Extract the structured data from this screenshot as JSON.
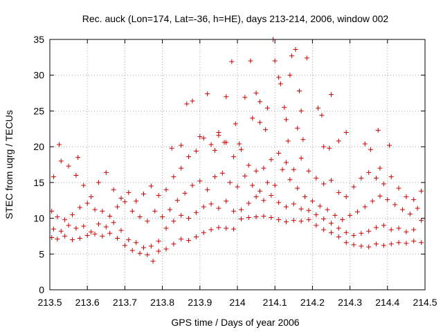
{
  "chart_data": {
    "type": "scatter",
    "title": "Rec. auck (Lon=174, Lat=-36, h=HE), days 213-214, 2006, window 002",
    "xlabel": "GPS time / Days of year 2006",
    "ylabel": "STEC from uqrg / TECUs",
    "xlim": [
      213.5,
      214.5
    ],
    "ylim": [
      0,
      35
    ],
    "x_ticks": [
      213.5,
      213.6,
      213.7,
      213.8,
      213.9,
      214.0,
      214.1,
      214.2,
      214.3,
      214.4,
      214.5
    ],
    "x_tick_labels": [
      "213.5",
      "213.6",
      "213.7",
      "213.8",
      "213.9",
      "214",
      "214.1",
      "214.2",
      "214.3",
      "214.4",
      "214.5"
    ],
    "y_ticks": [
      0,
      5,
      10,
      15,
      20,
      25,
      30,
      35
    ],
    "y_tick_labels": [
      "0",
      "5",
      "10",
      "15",
      "20",
      "25",
      "30",
      "35"
    ],
    "grid": true,
    "marker": "plus",
    "color": "#cc0000",
    "series": [
      {
        "values": [
          [
            213.505,
            7.3
          ],
          [
            213.52,
            7.1
          ],
          [
            213.54,
            7.5
          ],
          [
            213.56,
            7.0
          ],
          [
            213.58,
            7.2
          ],
          [
            213.6,
            7.6
          ],
          [
            213.62,
            7.8
          ],
          [
            213.64,
            7.5
          ],
          [
            213.66,
            7.9
          ],
          [
            213.68,
            7.2
          ],
          [
            213.7,
            6.2
          ],
          [
            213.72,
            5.5
          ],
          [
            213.74,
            5.1
          ],
          [
            213.76,
            4.9
          ],
          [
            213.775,
            4.0
          ],
          [
            213.79,
            5.4
          ],
          [
            213.81,
            5.7
          ],
          [
            213.83,
            6.4
          ],
          [
            213.85,
            7.1
          ],
          [
            213.87,
            6.9
          ],
          [
            213.89,
            7.4
          ],
          [
            213.91,
            8.0
          ],
          [
            213.93,
            8.4
          ],
          [
            213.95,
            8.7
          ],
          [
            213.97,
            8.6
          ],
          [
            213.99,
            8.5
          ],
          [
            214.01,
            9.9
          ],
          [
            214.03,
            10.1
          ],
          [
            214.05,
            10.2
          ],
          [
            214.07,
            10.3
          ],
          [
            214.09,
            10.1
          ],
          [
            214.11,
            9.8
          ],
          [
            214.13,
            9.5
          ],
          [
            214.15,
            9.7
          ],
          [
            214.17,
            9.6
          ],
          [
            214.19,
            9.8
          ],
          [
            214.21,
            9.0
          ],
          [
            214.23,
            8.4
          ],
          [
            214.25,
            8.0
          ],
          [
            214.27,
            7.4
          ],
          [
            214.29,
            6.6
          ],
          [
            214.31,
            6.3
          ],
          [
            214.33,
            6.1
          ],
          [
            214.35,
            6.0
          ],
          [
            214.37,
            6.4
          ],
          [
            214.39,
            6.2
          ],
          [
            214.41,
            6.4
          ],
          [
            214.43,
            6.6
          ],
          [
            214.45,
            6.5
          ],
          [
            214.47,
            6.8
          ],
          [
            214.49,
            6.6
          ],
          [
            213.51,
            8.5
          ],
          [
            213.53,
            8.2
          ],
          [
            213.55,
            9.0
          ],
          [
            213.57,
            8.6
          ],
          [
            213.59,
            8.9
          ],
          [
            213.61,
            8.1
          ],
          [
            213.63,
            9.2
          ],
          [
            213.65,
            8.8
          ],
          [
            213.67,
            9.4
          ],
          [
            213.69,
            8.3
          ],
          [
            213.71,
            7.0
          ],
          [
            213.73,
            6.6
          ],
          [
            213.75,
            5.9
          ],
          [
            213.77,
            6.1
          ],
          [
            213.79,
            6.8
          ],
          [
            213.81,
            8.6
          ],
          [
            213.83,
            9.6
          ],
          [
            213.85,
            10.4
          ],
          [
            213.87,
            10.0
          ],
          [
            213.89,
            10.8
          ],
          [
            213.91,
            11.6
          ],
          [
            213.93,
            12.0
          ],
          [
            213.95,
            11.4
          ],
          [
            213.97,
            12.4
          ],
          [
            213.99,
            11.0
          ],
          [
            214.01,
            11.2
          ],
          [
            214.03,
            12.1
          ],
          [
            214.05,
            13.0
          ],
          [
            214.07,
            12.5
          ],
          [
            214.09,
            13.2
          ],
          [
            214.11,
            12.2
          ],
          [
            214.13,
            11.6
          ],
          [
            214.15,
            12.0
          ],
          [
            214.17,
            11.3
          ],
          [
            214.19,
            11.1
          ],
          [
            214.21,
            10.5
          ],
          [
            214.23,
            9.9
          ],
          [
            214.25,
            9.3
          ],
          [
            214.27,
            8.6
          ],
          [
            214.29,
            8.0
          ],
          [
            214.31,
            7.6
          ],
          [
            214.33,
            7.9
          ],
          [
            214.35,
            8.2
          ],
          [
            214.37,
            8.7
          ],
          [
            214.39,
            9.0
          ],
          [
            214.41,
            8.4
          ],
          [
            214.43,
            8.6
          ],
          [
            214.45,
            8.1
          ],
          [
            214.47,
            8.4
          ],
          [
            214.49,
            9.7
          ],
          [
            213.505,
            11.0
          ],
          [
            213.52,
            10.2
          ],
          [
            213.54,
            9.8
          ],
          [
            213.56,
            10.5
          ],
          [
            213.58,
            11.5
          ],
          [
            213.6,
            12.1
          ],
          [
            213.62,
            11.2
          ],
          [
            213.64,
            11.0
          ],
          [
            213.66,
            10.3
          ],
          [
            213.68,
            11.6
          ],
          [
            213.7,
            12.3
          ],
          [
            213.72,
            11.0
          ],
          [
            213.74,
            10.2
          ],
          [
            213.76,
            9.6
          ],
          [
            213.78,
            11.0
          ],
          [
            213.8,
            10.2
          ],
          [
            213.82,
            11.2
          ],
          [
            213.84,
            12.5
          ],
          [
            213.86,
            13.5
          ],
          [
            213.88,
            14.6
          ],
          [
            213.9,
            15.2
          ],
          [
            213.92,
            14.0
          ],
          [
            213.94,
            15.8
          ],
          [
            213.96,
            16.3
          ],
          [
            213.98,
            15.0
          ],
          [
            214.0,
            14.4
          ],
          [
            214.02,
            15.9
          ],
          [
            214.04,
            14.6
          ],
          [
            214.06,
            13.8
          ],
          [
            214.08,
            15.0
          ],
          [
            214.1,
            14.6
          ],
          [
            214.12,
            16.8
          ],
          [
            214.14,
            15.4
          ],
          [
            214.16,
            14.2
          ],
          [
            214.18,
            13.0
          ],
          [
            214.2,
            12.4
          ],
          [
            214.22,
            11.7
          ],
          [
            214.24,
            11.2
          ],
          [
            214.26,
            10.4
          ],
          [
            214.28,
            9.8
          ],
          [
            214.3,
            10.4
          ],
          [
            214.32,
            10.9
          ],
          [
            214.34,
            11.6
          ],
          [
            214.36,
            12.4
          ],
          [
            214.38,
            13.1
          ],
          [
            214.4,
            12.6
          ],
          [
            214.42,
            11.9
          ],
          [
            214.44,
            11.2
          ],
          [
            214.46,
            10.6
          ],
          [
            214.48,
            11.4
          ],
          [
            213.51,
            15.8
          ],
          [
            213.53,
            18.0
          ],
          [
            213.55,
            17.3
          ],
          [
            213.57,
            16.0
          ],
          [
            213.59,
            14.6
          ],
          [
            213.61,
            13.0
          ],
          [
            213.63,
            15.0
          ],
          [
            213.65,
            16.4
          ],
          [
            213.67,
            14.0
          ],
          [
            213.69,
            12.8
          ],
          [
            213.71,
            13.6
          ],
          [
            213.73,
            12.4
          ],
          [
            213.75,
            13.4
          ],
          [
            213.77,
            14.5
          ],
          [
            213.79,
            13.2
          ],
          [
            213.81,
            14.0
          ],
          [
            213.83,
            15.8
          ],
          [
            213.85,
            17.0
          ],
          [
            213.87,
            18.6
          ],
          [
            213.89,
            19.4
          ],
          [
            213.91,
            21.2
          ],
          [
            213.93,
            20.3
          ],
          [
            213.95,
            21.6
          ],
          [
            213.97,
            20.6
          ],
          [
            213.99,
            18.6
          ],
          [
            214.01,
            19.6
          ],
          [
            214.03,
            17.4
          ],
          [
            214.05,
            16.6
          ],
          [
            214.07,
            17.0
          ],
          [
            214.09,
            18.2
          ],
          [
            214.11,
            19.1
          ],
          [
            214.13,
            17.8
          ],
          [
            214.15,
            16.8
          ],
          [
            214.17,
            18.4
          ],
          [
            214.19,
            16.6
          ],
          [
            214.21,
            15.6
          ],
          [
            214.23,
            14.8
          ],
          [
            214.25,
            15.3
          ],
          [
            214.27,
            13.6
          ],
          [
            214.29,
            13.0
          ],
          [
            214.31,
            14.4
          ],
          [
            214.33,
            15.6
          ],
          [
            214.35,
            16.4
          ],
          [
            214.37,
            15.6
          ],
          [
            214.39,
            14.8
          ],
          [
            214.41,
            15.8
          ],
          [
            214.43,
            14.2
          ],
          [
            214.45,
            13.0
          ],
          [
            214.47,
            12.6
          ],
          [
            214.49,
            13.8
          ],
          [
            213.525,
            20.3
          ],
          [
            213.575,
            18.5
          ],
          [
            213.825,
            19.8
          ],
          [
            213.85,
            20.2
          ],
          [
            213.865,
            26.0
          ],
          [
            213.88,
            26.4
          ],
          [
            213.9,
            21.4
          ],
          [
            213.92,
            27.4
          ],
          [
            213.95,
            22.0
          ],
          [
            213.97,
            27.0
          ],
          [
            213.985,
            31.9
          ],
          [
            214.02,
            26.9
          ],
          [
            214.035,
            32.0
          ],
          [
            214.05,
            27.5
          ],
          [
            214.06,
            26.3
          ],
          [
            214.08,
            25.4
          ],
          [
            214.095,
            35.0
          ],
          [
            214.1,
            32.0
          ],
          [
            214.11,
            29.7
          ],
          [
            214.115,
            28.8
          ],
          [
            214.125,
            25.5
          ],
          [
            214.14,
            30.0
          ],
          [
            214.145,
            32.7
          ],
          [
            214.155,
            33.6
          ],
          [
            214.165,
            27.8
          ],
          [
            214.17,
            25.0
          ],
          [
            214.185,
            32.4
          ],
          [
            214.215,
            25.4
          ],
          [
            214.225,
            24.4
          ],
          [
            214.25,
            27.3
          ],
          [
            214.29,
            22.0
          ],
          [
            214.375,
            22.3
          ],
          [
            214.405,
            20.2
          ],
          [
            214.075,
            22.4
          ],
          [
            214.06,
            23.4
          ],
          [
            214.04,
            24.0
          ],
          [
            214.13,
            23.8
          ],
          [
            214.16,
            22.6
          ],
          [
            213.965,
            20.6
          ],
          [
            213.94,
            19.5
          ],
          [
            213.995,
            23.2
          ],
          [
            214.005,
            20.4
          ],
          [
            214.135,
            20.8
          ],
          [
            214.175,
            21.0
          ],
          [
            214.23,
            20.0
          ],
          [
            214.245,
            19.8
          ],
          [
            214.27,
            20.8
          ],
          [
            214.34,
            20.4
          ],
          [
            214.355,
            19.6
          ],
          [
            214.38,
            17.0
          ]
        ]
      }
    ]
  }
}
